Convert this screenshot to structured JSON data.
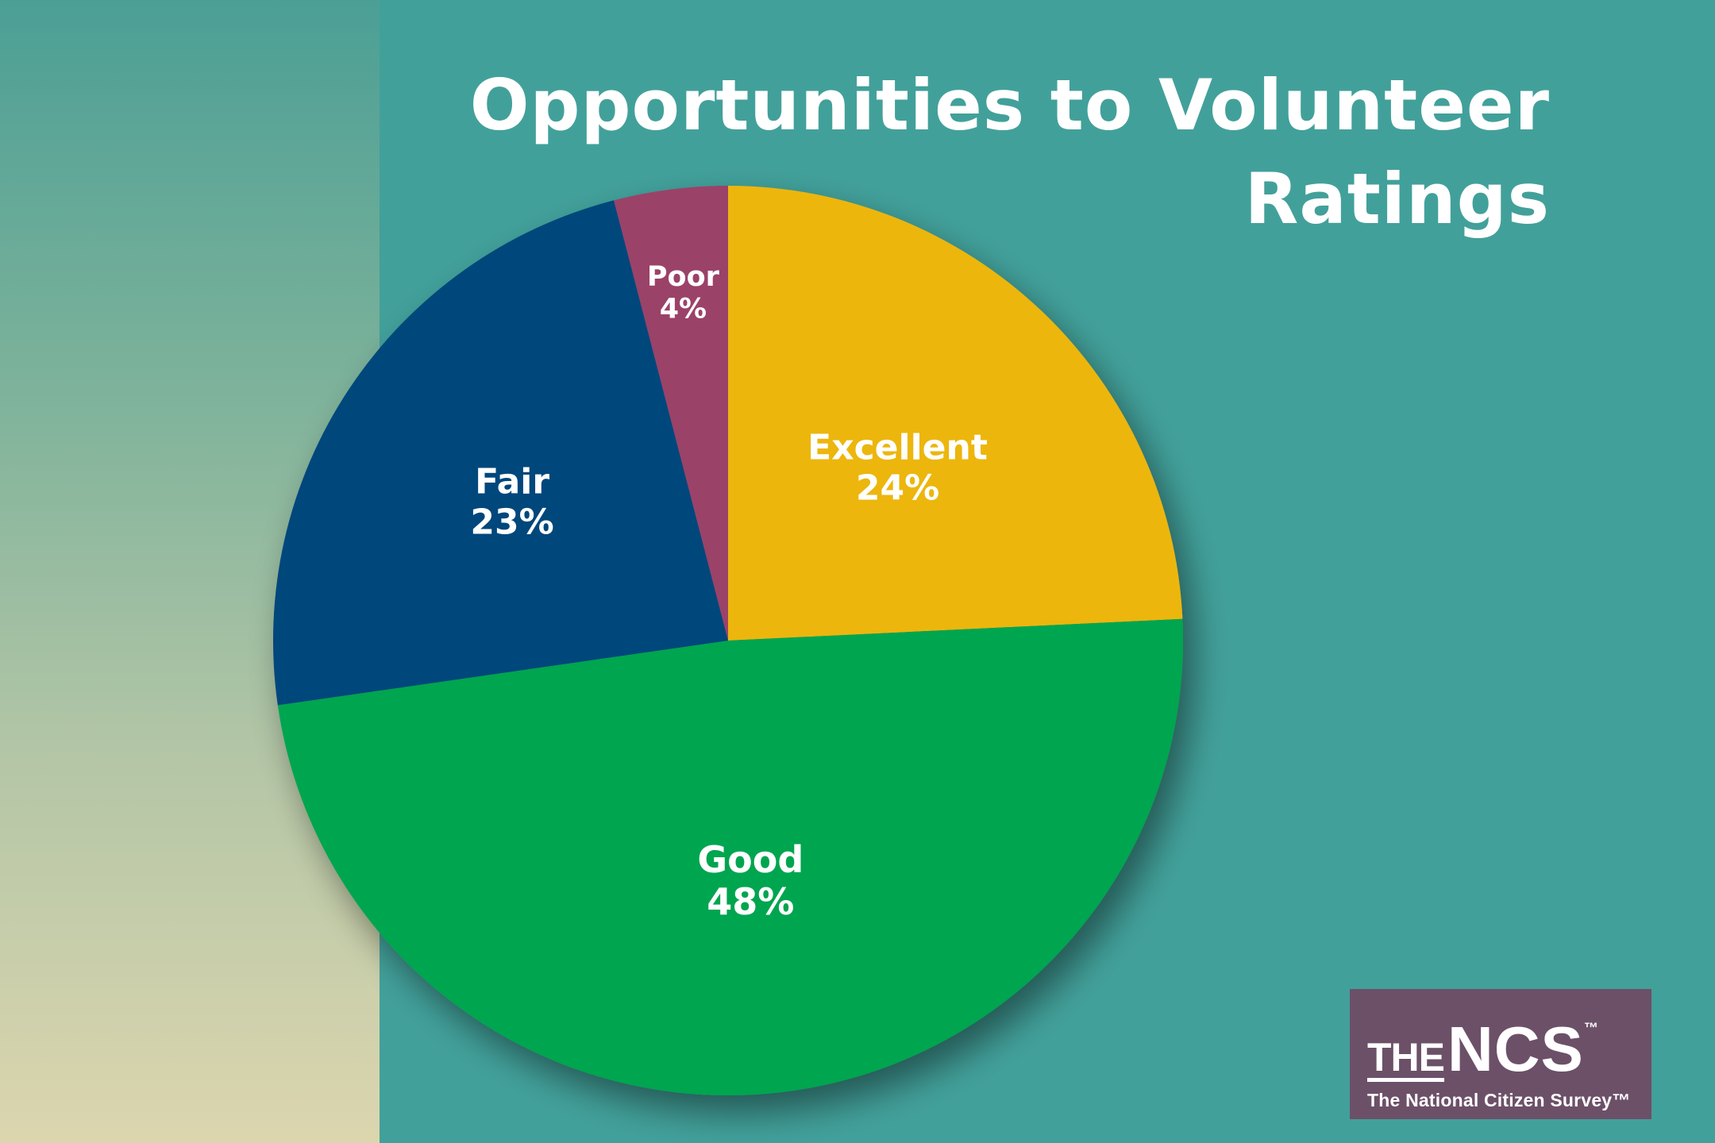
{
  "chart_data": {
    "type": "pie",
    "title": "Opportunities to Volunteer Ratings",
    "slices": [
      {
        "label": "Excellent",
        "value": 24,
        "value_label": "24%",
        "color": "#ecb60b"
      },
      {
        "label": "Good",
        "value": 48,
        "value_label": "48%",
        "color": "#01a54f"
      },
      {
        "label": "Fair",
        "value": 23,
        "value_label": "23%",
        "color": "#02477b"
      },
      {
        "label": "Poor",
        "value": 4,
        "value_label": "4%",
        "color": "#9b4269"
      }
    ],
    "start_angle": "12 o'clock",
    "direction": "clockwise",
    "legend": "none"
  },
  "colors": {
    "background": "#42a09a",
    "logo_background": "#6c5068",
    "text": "#ffffff"
  },
  "logo": {
    "the": "THE",
    "ncs": "NCS",
    "tm": "™",
    "tagline": "The National Citizen Survey™"
  }
}
